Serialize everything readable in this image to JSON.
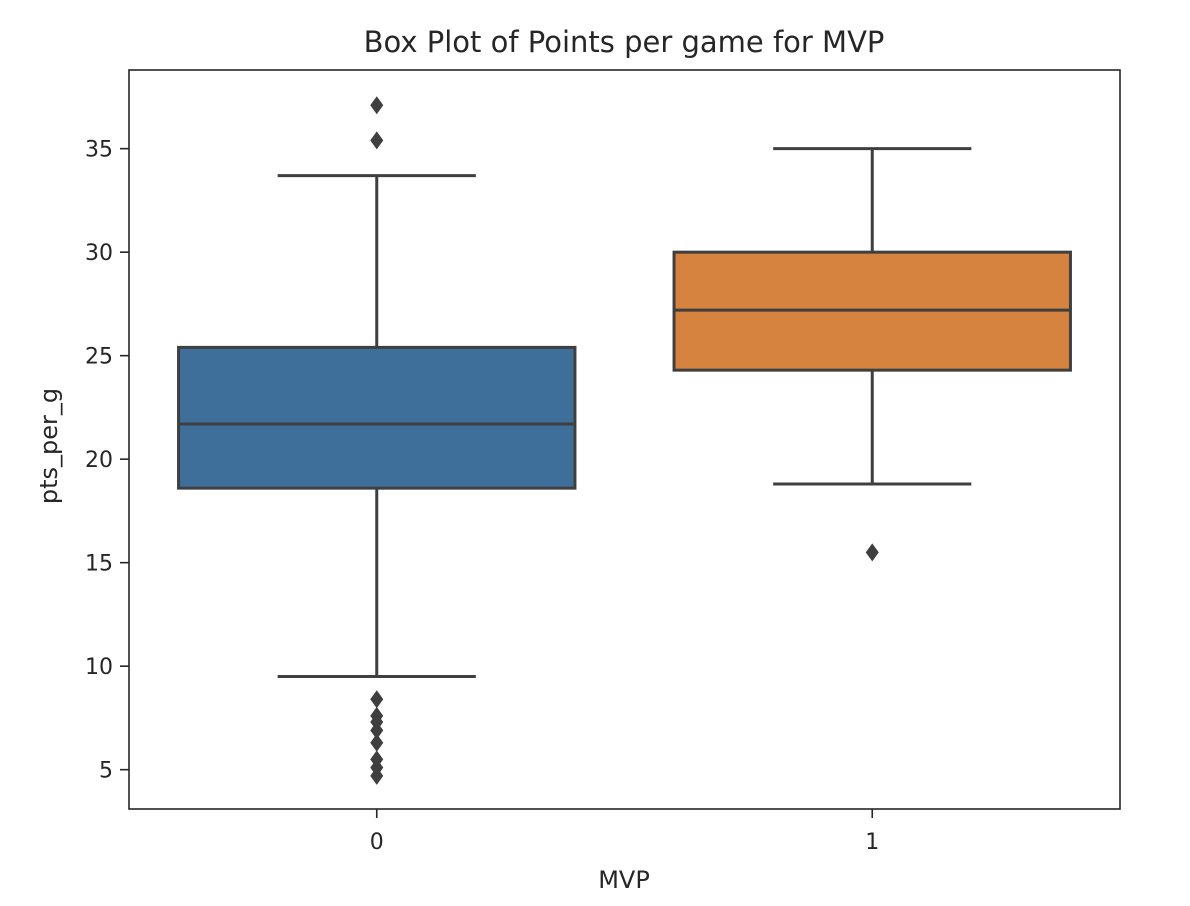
{
  "chart_data": {
    "type": "box",
    "title": "Box Plot of Points per game for MVP",
    "xlabel": "MVP",
    "ylabel": "pts_per_g",
    "categories": [
      "0",
      "1"
    ],
    "ylim": [
      3.1,
      38.8
    ],
    "yticks": [
      5,
      10,
      15,
      20,
      25,
      30,
      35
    ],
    "grid": false,
    "series": [
      {
        "category": "0",
        "color": "#3e6f9b",
        "whisker_low": 9.5,
        "q1": 18.6,
        "median": 21.7,
        "q3": 25.4,
        "whisker_high": 33.7,
        "outliers": [
          37.1,
          35.4,
          8.4,
          7.6,
          7.3,
          6.9,
          6.3,
          5.5,
          5.1,
          4.7
        ]
      },
      {
        "category": "1",
        "color": "#d5833f",
        "whisker_low": 18.8,
        "q1": 24.3,
        "median": 27.2,
        "q3": 30.0,
        "whisker_high": 35.0,
        "outliers": [
          15.5
        ]
      }
    ]
  }
}
